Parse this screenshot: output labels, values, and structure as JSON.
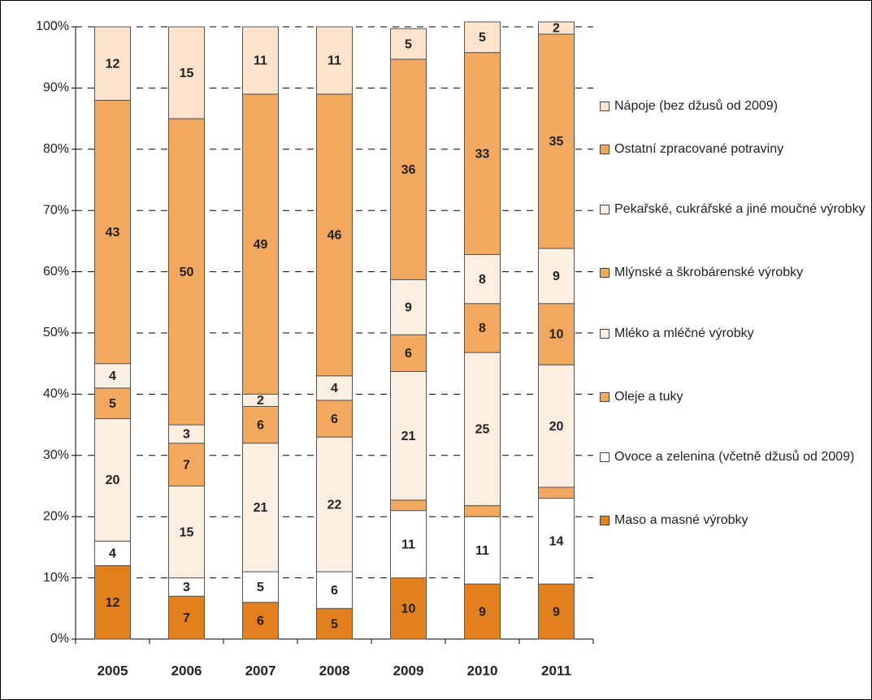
{
  "chart_data": {
    "type": "stacked_bar",
    "categories": [
      "2005",
      "2006",
      "2007",
      "2008",
      "2009",
      "2010",
      "2011"
    ],
    "series": [
      {
        "name": "Maso a masné výrobky",
        "color": "#e2801e",
        "values": [
          12,
          7,
          6,
          5,
          10,
          9,
          9
        ]
      },
      {
        "name": "Ovoce a zelenina (včetně džusů od 2009)",
        "color": "#ffffff",
        "values": [
          4,
          3,
          5,
          6,
          11,
          11,
          14
        ]
      },
      {
        "name": "Oleje a tuky",
        "color": "#f2a85e",
        "values": [
          0,
          0,
          0,
          0,
          1.7,
          1.8,
          1.8
        ],
        "value_labels": [
          null,
          null,
          null,
          null,
          null,
          null,
          null
        ]
      },
      {
        "name": "Mléko a mléčné výrobky",
        "color": "#fdeee2",
        "values": [
          20,
          15,
          21,
          22,
          21,
          25,
          20
        ]
      },
      {
        "name": "Mlýnské a škrobárenské výrobky",
        "color": "#f2a85e",
        "values": [
          5,
          7,
          6,
          6,
          6,
          8,
          10
        ]
      },
      {
        "name": "Pekařské, cukrářské a jiné moučné výrobky",
        "color": "#fdeee2",
        "values": [
          4,
          3,
          2,
          4,
          9,
          8,
          9
        ]
      },
      {
        "name": "Ostatní zpracované potraviny",
        "color": "#f2a85e",
        "values": [
          43,
          50,
          49,
          46,
          36,
          33,
          35
        ]
      },
      {
        "name": "Nápoje (bez džusů od 2009)",
        "color": "#fde3cc",
        "values": [
          12,
          15,
          11,
          11,
          5,
          5,
          2
        ]
      }
    ],
    "ylim": [
      0,
      100
    ],
    "yticks": [
      {
        "value": 0,
        "label": "0%"
      },
      {
        "value": 10,
        "label": "10%"
      },
      {
        "value": 20,
        "label": "20%"
      },
      {
        "value": 30,
        "label": "30%"
      },
      {
        "value": 40,
        "label": "40%"
      },
      {
        "value": 50,
        "label": "50%"
      },
      {
        "value": 60,
        "label": "60%"
      },
      {
        "value": 70,
        "label": "70%"
      },
      {
        "value": 80,
        "label": "80%"
      },
      {
        "value": 90,
        "label": "90%"
      },
      {
        "value": 100,
        "label": "100%"
      }
    ],
    "grid": true,
    "legend": "right"
  }
}
